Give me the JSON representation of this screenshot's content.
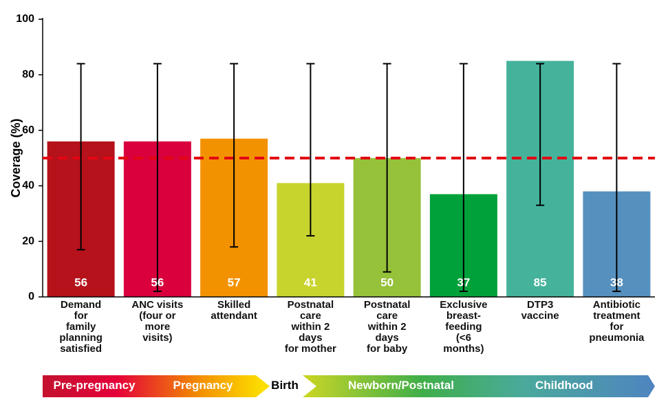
{
  "chart_data": {
    "type": "bar",
    "ylabel": "Coverage (%)",
    "categories": [
      "Demand\nfor\nfamily\nplanning\nsatisfied",
      "ANC visits\n(four or\nmore\nvisits)",
      "Skilled\nattendant",
      "Postnatal\ncare\nwithin 2\ndays\nfor mother",
      "Postnatal\ncare\nwithin 2\ndays\nfor baby",
      "Exclusive\nbreast-\nfeeding\n(<6\nmonths)",
      "DTP3\nvaccine",
      "Antibiotic\ntreatment\nfor\npneumonia"
    ],
    "values": [
      56,
      56,
      57,
      41,
      50,
      37,
      85,
      38
    ],
    "ci_low": [
      17,
      2,
      18,
      22,
      9,
      2,
      33,
      2
    ],
    "ci_high": [
      84,
      84,
      84,
      84,
      84,
      84,
      84,
      84
    ],
    "colors": [
      "#b5121b",
      "#d9003d",
      "#f39200",
      "#c8d42e",
      "#96c13a",
      "#00a13a",
      "#45b39b",
      "#5590bf"
    ],
    "reference_line": {
      "value": 50,
      "color": "#e30613"
    },
    "ylim": [
      0,
      100
    ],
    "yticks": [
      0,
      20,
      40,
      60,
      80,
      100
    ],
    "stages": [
      "Pre-pregnancy",
      "Pregnancy",
      "Birth",
      "Newborn/Postnatal",
      "Childhood"
    ]
  }
}
